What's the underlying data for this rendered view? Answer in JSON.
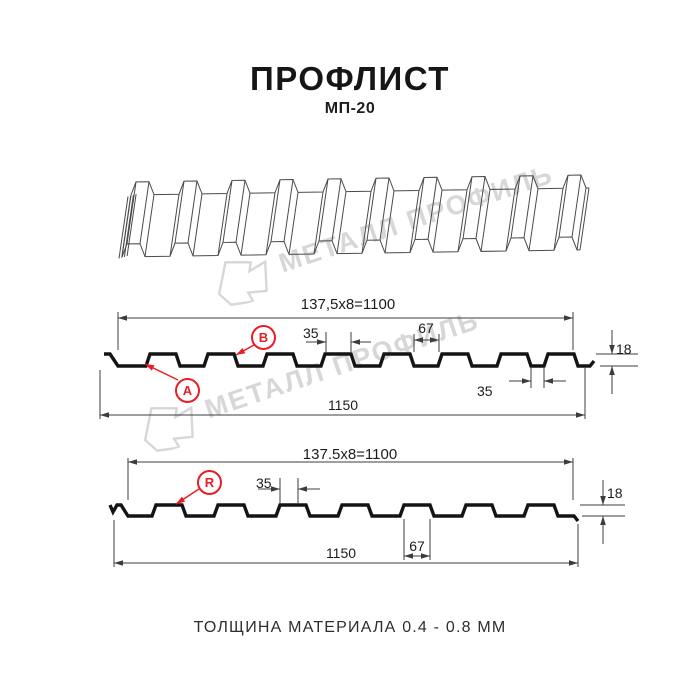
{
  "title": "ПРОФЛИСТ",
  "subtitle": "МП-20",
  "footer": "ТОЛЩИНА МАТЕРИАЛА 0.4 - 0.8 ММ",
  "watermark": {
    "text": "МЕТАЛЛ ПРОФИЛЬ"
  },
  "colors": {
    "accent_red": "#ea1c24",
    "line_dark": "#141414",
    "dim_line": "#3c3c3c",
    "sheet_line": "#4a4a4a",
    "watermark_gray": "#d7d7d7"
  },
  "section_a": {
    "dim_module": "137,5x8=1100",
    "dim_rib_top": "35",
    "dim_flat": "67",
    "dim_height": "18",
    "dim_overlap": "35",
    "dim_overall": "1150",
    "label_a": "A",
    "label_b": "B"
  },
  "section_r": {
    "dim_module": "137.5x8=1100",
    "dim_rib_top": "35",
    "dim_flat": "67",
    "dim_height": "18",
    "dim_overall": "1150",
    "label_r": "R"
  }
}
